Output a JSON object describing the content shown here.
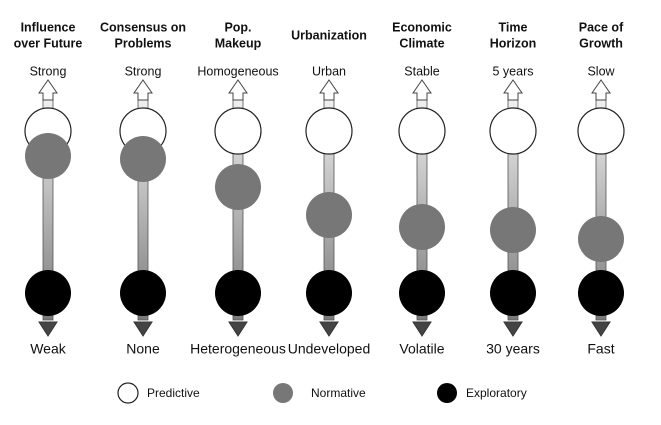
{
  "columns": [
    {
      "title": [
        "Influence",
        "over Future"
      ],
      "top": "Strong",
      "bottom": "Weak"
    },
    {
      "title": [
        "Consensus on",
        "Problems"
      ],
      "top": "Strong",
      "bottom": "None"
    },
    {
      "title": [
        "Pop.",
        "Makeup"
      ],
      "top": "Homogeneous",
      "bottom": "Heterogeneous"
    },
    {
      "title": [
        "Urbanization"
      ],
      "top": "Urban",
      "bottom": "Undeveloped"
    },
    {
      "title": [
        "Economic",
        "Climate"
      ],
      "top": "Stable",
      "bottom": "Volatile"
    },
    {
      "title": [
        "Time",
        "Horizon"
      ],
      "top": "5 years",
      "bottom": "30 years"
    },
    {
      "title": [
        "Pace of",
        "Growth"
      ],
      "top": "Slow",
      "bottom": "Fast"
    }
  ],
  "legend": [
    {
      "label": "Predictive",
      "color": "#ffffff"
    },
    {
      "label": "Normative",
      "color": "#777777"
    },
    {
      "label": "Exploratory",
      "color": "#000000"
    }
  ]
}
